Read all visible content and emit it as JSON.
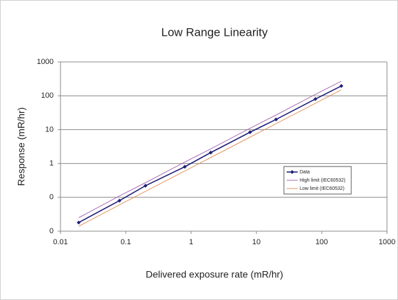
{
  "chart_data": {
    "type": "line",
    "title": "Low Range Linearity",
    "x_label": "Delivered exposure rate (mR/hr)",
    "y_label": "Response (mR/hr)",
    "x": [
      0.019,
      0.08,
      0.2,
      0.8,
      2,
      8,
      20,
      80,
      200
    ],
    "series": [
      {
        "name": "Data",
        "color": "#1f1f78",
        "marker": true,
        "values": [
          0.018,
          0.08,
          0.22,
          0.8,
          2.1,
          8.4,
          20,
          80,
          195
        ]
      },
      {
        "name": "High limit (IEC60532)",
        "color": "#a05aa8",
        "marker": false,
        "values": [
          0.025,
          0.11,
          0.27,
          1.1,
          2.7,
          11,
          27,
          110,
          270
        ]
      },
      {
        "name": "Low limit (IEC60532)",
        "color": "#e0874a",
        "marker": false,
        "values": [
          0.014,
          0.06,
          0.15,
          0.6,
          1.5,
          6,
          15,
          60,
          150
        ]
      }
    ],
    "xscale": "log",
    "yscale": "log",
    "xlim": [
      0.01,
      1000
    ],
    "ylim": [
      0.01,
      1000
    ],
    "xticks": [
      0.01,
      0.1,
      1,
      10,
      100,
      1000
    ],
    "yticks": [
      {
        "value": 0.01,
        "label": "0"
      },
      {
        "value": 0.1,
        "label": "0"
      },
      1,
      10,
      100,
      1000
    ],
    "grid": true
  }
}
